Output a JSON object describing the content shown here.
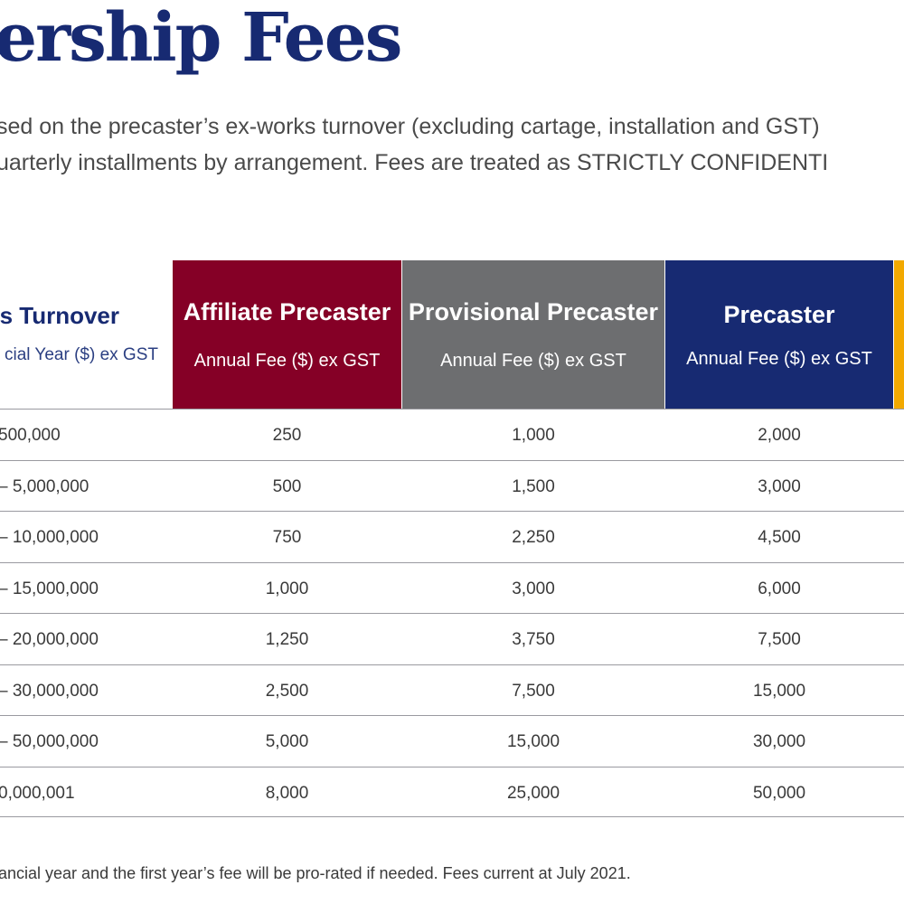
{
  "title": "ership Fees",
  "intro": {
    "line1": "sed on the precaster’s ex-works turnover (excluding cartage, installation and GST)",
    "line2": "uarterly installments by arrangement. Fees are treated as STRICTLY CONFIDENTI"
  },
  "table": {
    "headers": {
      "turnover": {
        "title": "s Turnover",
        "subtitle": "cial Year ($) ex GST"
      },
      "affiliate": {
        "title": "Affiliate Precaster",
        "subtitle": "Annual Fee ($) ex GST"
      },
      "provisional": {
        "title": "Provisional Precaster",
        "subtitle": "Annual Fee ($) ex GST"
      },
      "precaster": {
        "title": "Precaster",
        "subtitle": "Annual Fee ($) ex GST"
      }
    },
    "colors": {
      "affiliate": "#850026",
      "provisional": "#6d6e70",
      "precaster": "#172a72",
      "partial": "#f2a900"
    },
    "rows": [
      {
        "turnover": "500,000",
        "affiliate": "250",
        "provisional": "1,000",
        "precaster": "2,000"
      },
      {
        "turnover": "– 5,000,000",
        "affiliate": "500",
        "provisional": "1,500",
        "precaster": "3,000"
      },
      {
        "turnover": "– 10,000,000",
        "affiliate": "750",
        "provisional": "2,250",
        "precaster": "4,500"
      },
      {
        "turnover": "– 15,000,000",
        "affiliate": "1,000",
        "provisional": "3,000",
        "precaster": "6,000"
      },
      {
        "turnover": "– 20,000,000",
        "affiliate": "1,250",
        "provisional": "3,750",
        "precaster": "7,500"
      },
      {
        "turnover": "– 30,000,000",
        "affiliate": "2,500",
        "provisional": "7,500",
        "precaster": "15,000"
      },
      {
        "turnover": "– 50,000,000",
        "affiliate": "5,000",
        "provisional": "15,000",
        "precaster": "30,000"
      },
      {
        "turnover": "0,000,001",
        "affiliate": "8,000",
        "provisional": "25,000",
        "precaster": "50,000"
      }
    ]
  },
  "footnote": "ancial year and the first year’s fee will be pro-rated if needed. Fees current at July 2021."
}
